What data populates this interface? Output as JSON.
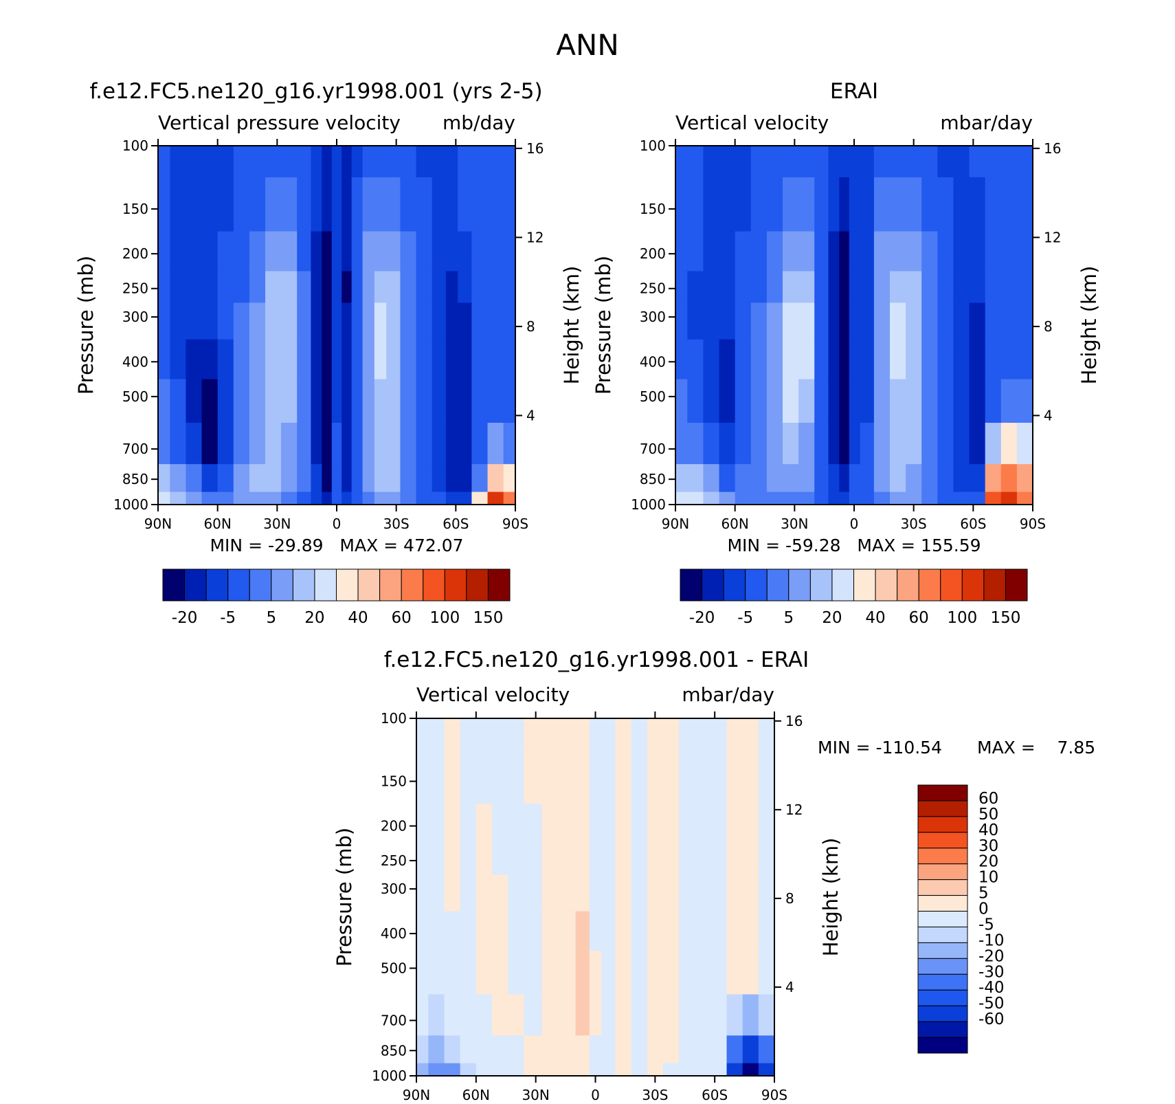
{
  "page_title": "ANN",
  "colors": {
    "diverging_15": [
      "#00006e",
      "#0020b4",
      "#0b3fd9",
      "#2259ef",
      "#4a7af5",
      "#7a9ef7",
      "#a8c2fa",
      "#d3e3fc",
      "#fde9d6",
      "#fccab1",
      "#fca47f",
      "#fb7b4b",
      "#f45421",
      "#db3408",
      "#b41f00",
      "#800000"
    ],
    "diff_16": [
      "#000080",
      "#0018a8",
      "#0b3fd9",
      "#1f58ef",
      "#3f73f5",
      "#6a93f7",
      "#96b6fa",
      "#c3d8fc",
      "#dbeafd",
      "#fde9d6",
      "#fccab1",
      "#fca47f",
      "#fb7b4b",
      "#f45421",
      "#db3408",
      "#b41f00",
      "#800000"
    ]
  },
  "chart_data": [
    {
      "type": "heatmap",
      "title": "f.e12.FC5.ne120_g16.yr1998.001 (yrs 2-5)",
      "subtitle_left": "Vertical pressure velocity",
      "subtitle_right": "mb/day",
      "xlabel": "",
      "ylabel": "Pressure (mb)",
      "ylabel_right": "Height (km)",
      "x_ticks": [
        "90N",
        "60N",
        "30N",
        "0",
        "30S",
        "60S",
        "90S"
      ],
      "y_ticks": [
        100,
        150,
        200,
        250,
        300,
        400,
        500,
        700,
        850,
        1000
      ],
      "y_right_ticks": [
        16,
        12,
        8,
        4
      ],
      "ylim": [
        1000,
        100
      ],
      "stats_text": "MIN = -29.89   MAX = 472.07",
      "colorbar_labels": [
        "-20",
        "-5",
        "5",
        "20",
        "40",
        "60",
        "100",
        "150"
      ],
      "columns": [
        {
          "lat": 88,
          "v": [
            3,
            3,
            3,
            3,
            3,
            3,
            4,
            4,
            6,
            7
          ]
        },
        {
          "lat": 80,
          "v": [
            2,
            2,
            2,
            2,
            2,
            2,
            3,
            3,
            5,
            6
          ]
        },
        {
          "lat": 72,
          "v": [
            2,
            2,
            2,
            2,
            2,
            1,
            1,
            2,
            4,
            5
          ]
        },
        {
          "lat": 64,
          "v": [
            2,
            2,
            2,
            2,
            2,
            1,
            0,
            0,
            2,
            4
          ]
        },
        {
          "lat": 56,
          "v": [
            2,
            2,
            3,
            3,
            3,
            2,
            2,
            2,
            3,
            4
          ]
        },
        {
          "lat": 48,
          "v": [
            3,
            3,
            3,
            3,
            4,
            4,
            4,
            4,
            5,
            5
          ]
        },
        {
          "lat": 40,
          "v": [
            3,
            3,
            4,
            4,
            5,
            5,
            5,
            5,
            6,
            5
          ]
        },
        {
          "lat": 32,
          "v": [
            3,
            4,
            5,
            6,
            6,
            6,
            6,
            6,
            6,
            5
          ]
        },
        {
          "lat": 24,
          "v": [
            3,
            4,
            5,
            6,
            6,
            6,
            6,
            5,
            5,
            4
          ]
        },
        {
          "lat": 16,
          "v": [
            3,
            3,
            3,
            4,
            4,
            4,
            4,
            4,
            4,
            3
          ]
        },
        {
          "lat": 10,
          "v": [
            2,
            2,
            1,
            1,
            1,
            1,
            1,
            1,
            2,
            2
          ]
        },
        {
          "lat": 5,
          "v": [
            1,
            1,
            0,
            0,
            0,
            0,
            0,
            0,
            0,
            1
          ]
        },
        {
          "lat": 0,
          "v": [
            2,
            2,
            2,
            2,
            2,
            2,
            2,
            3,
            3,
            3
          ]
        },
        {
          "lat": -5,
          "v": [
            1,
            1,
            1,
            0,
            1,
            1,
            1,
            1,
            1,
            2
          ]
        },
        {
          "lat": -10,
          "v": [
            2,
            3,
            3,
            3,
            3,
            3,
            3,
            3,
            3,
            3
          ]
        },
        {
          "lat": -16,
          "v": [
            3,
            4,
            5,
            5,
            5,
            5,
            5,
            5,
            5,
            4
          ]
        },
        {
          "lat": -22,
          "v": [
            3,
            4,
            5,
            6,
            7,
            7,
            6,
            6,
            6,
            5
          ]
        },
        {
          "lat": -28,
          "v": [
            3,
            4,
            5,
            6,
            6,
            6,
            6,
            6,
            6,
            5
          ]
        },
        {
          "lat": -36,
          "v": [
            3,
            3,
            4,
            4,
            4,
            4,
            4,
            4,
            4,
            4
          ]
        },
        {
          "lat": -44,
          "v": [
            2,
            3,
            3,
            3,
            3,
            3,
            3,
            3,
            3,
            3
          ]
        },
        {
          "lat": -52,
          "v": [
            2,
            2,
            2,
            2,
            2,
            2,
            2,
            2,
            2,
            3
          ]
        },
        {
          "lat": -58,
          "v": [
            2,
            2,
            2,
            1,
            1,
            1,
            1,
            1,
            1,
            2
          ]
        },
        {
          "lat": -64,
          "v": [
            3,
            3,
            2,
            2,
            1,
            1,
            1,
            1,
            1,
            2
          ]
        },
        {
          "lat": -72,
          "v": [
            3,
            3,
            3,
            3,
            3,
            3,
            3,
            3,
            4,
            8
          ]
        },
        {
          "lat": -80,
          "v": [
            3,
            3,
            3,
            3,
            3,
            3,
            3,
            5,
            9,
            13
          ]
        },
        {
          "lat": -88,
          "v": [
            3,
            3,
            3,
            3,
            3,
            3,
            3,
            4,
            8,
            11
          ]
        }
      ]
    },
    {
      "type": "heatmap",
      "title": "ERAI",
      "subtitle_left": "Vertical velocity",
      "subtitle_right": "mbar/day",
      "xlabel": "",
      "ylabel": "Pressure (mb)",
      "ylabel_right": "Height (km)",
      "x_ticks": [
        "90N",
        "60N",
        "30N",
        "0",
        "30S",
        "60S",
        "90S"
      ],
      "y_ticks": [
        100,
        150,
        200,
        250,
        300,
        400,
        500,
        700,
        850,
        1000
      ],
      "y_right_ticks": [
        16,
        12,
        8,
        4
      ],
      "ylim": [
        1000,
        100
      ],
      "stats_text": "MIN = -59.28   MAX = 155.59",
      "colorbar_labels": [
        "-20",
        "-5",
        "5",
        "20",
        "40",
        "60",
        "100",
        "150"
      ],
      "columns": [
        {
          "lat": 88,
          "v": [
            3,
            3,
            3,
            3,
            3,
            3,
            4,
            4,
            6,
            7
          ]
        },
        {
          "lat": 80,
          "v": [
            3,
            3,
            3,
            2,
            2,
            3,
            3,
            4,
            6,
            7
          ]
        },
        {
          "lat": 72,
          "v": [
            2,
            2,
            2,
            2,
            2,
            2,
            2,
            3,
            5,
            6
          ]
        },
        {
          "lat": 64,
          "v": [
            2,
            2,
            2,
            2,
            2,
            1,
            1,
            2,
            3,
            5
          ]
        },
        {
          "lat": 56,
          "v": [
            2,
            2,
            3,
            3,
            3,
            3,
            3,
            3,
            4,
            4
          ]
        },
        {
          "lat": 48,
          "v": [
            3,
            3,
            3,
            3,
            4,
            4,
            4,
            4,
            4,
            4
          ]
        },
        {
          "lat": 40,
          "v": [
            3,
            3,
            4,
            4,
            5,
            5,
            5,
            5,
            5,
            4
          ]
        },
        {
          "lat": 32,
          "v": [
            3,
            4,
            5,
            6,
            7,
            7,
            7,
            6,
            5,
            4
          ]
        },
        {
          "lat": 24,
          "v": [
            3,
            4,
            5,
            6,
            7,
            7,
            6,
            5,
            5,
            4
          ]
        },
        {
          "lat": 16,
          "v": [
            3,
            3,
            3,
            3,
            3,
            3,
            3,
            3,
            3,
            3
          ]
        },
        {
          "lat": 10,
          "v": [
            2,
            2,
            1,
            1,
            1,
            1,
            1,
            1,
            2,
            2
          ]
        },
        {
          "lat": 5,
          "v": [
            2,
            1,
            0,
            0,
            0,
            0,
            0,
            0,
            1,
            2
          ]
        },
        {
          "lat": 0,
          "v": [
            2,
            2,
            2,
            2,
            2,
            2,
            2,
            2,
            3,
            3
          ]
        },
        {
          "lat": -6,
          "v": [
            2,
            2,
            2,
            2,
            2,
            2,
            2,
            3,
            3,
            3
          ]
        },
        {
          "lat": -14,
          "v": [
            3,
            4,
            5,
            5,
            5,
            5,
            5,
            5,
            5,
            4
          ]
        },
        {
          "lat": -22,
          "v": [
            3,
            4,
            5,
            6,
            7,
            7,
            6,
            6,
            6,
            5
          ]
        },
        {
          "lat": -30,
          "v": [
            3,
            4,
            5,
            6,
            6,
            6,
            6,
            6,
            5,
            5
          ]
        },
        {
          "lat": -38,
          "v": [
            3,
            3,
            4,
            4,
            4,
            4,
            4,
            4,
            4,
            4
          ]
        },
        {
          "lat": -46,
          "v": [
            2,
            3,
            3,
            3,
            3,
            3,
            3,
            3,
            3,
            3
          ]
        },
        {
          "lat": -54,
          "v": [
            2,
            2,
            2,
            2,
            2,
            2,
            2,
            2,
            2,
            3
          ]
        },
        {
          "lat": -62,
          "v": [
            3,
            2,
            2,
            2,
            1,
            1,
            1,
            1,
            2,
            3
          ]
        },
        {
          "lat": -70,
          "v": [
            3,
            3,
            3,
            3,
            3,
            3,
            3,
            6,
            10,
            12
          ]
        },
        {
          "lat": -78,
          "v": [
            3,
            3,
            3,
            3,
            3,
            3,
            4,
            8,
            11,
            13
          ]
        },
        {
          "lat": -86,
          "v": [
            3,
            3,
            3,
            3,
            3,
            3,
            4,
            7,
            10,
            11
          ]
        }
      ]
    },
    {
      "type": "heatmap",
      "title": "f.e12.FC5.ne120_g16.yr1998.001 - ERAI",
      "subtitle_left": "Vertical velocity",
      "subtitle_right": "mbar/day",
      "xlabel": "",
      "ylabel": "Pressure (mb)",
      "ylabel_right": "Height (km)",
      "x_ticks": [
        "90N",
        "60N",
        "30N",
        "0",
        "30S",
        "60S",
        "90S"
      ],
      "y_ticks": [
        100,
        150,
        200,
        250,
        300,
        400,
        500,
        700,
        850,
        1000
      ],
      "y_right_ticks": [
        16,
        12,
        8,
        4
      ],
      "ylim": [
        1000,
        100
      ],
      "stats_text_min": "MIN = -110.54",
      "stats_text_max": "MAX =    7.85",
      "colorbar_labels": [
        "60",
        "50",
        "40",
        "30",
        "20",
        "10",
        "5",
        "0",
        "-5",
        "-10",
        "-20",
        "-30",
        "-40",
        "-50",
        "-60"
      ],
      "columns": [
        {
          "lat": 88,
          "v": [
            8,
            8,
            8,
            8,
            8,
            8,
            8,
            8,
            7,
            6
          ]
        },
        {
          "lat": 80,
          "v": [
            8,
            8,
            8,
            8,
            8,
            8,
            8,
            7,
            6,
            5
          ]
        },
        {
          "lat": 72,
          "v": [
            9,
            9,
            9,
            9,
            9,
            8,
            8,
            8,
            7,
            5
          ]
        },
        {
          "lat": 64,
          "v": [
            8,
            8,
            8,
            8,
            8,
            8,
            8,
            8,
            8,
            7
          ]
        },
        {
          "lat": 56,
          "v": [
            8,
            8,
            9,
            9,
            9,
            9,
            9,
            8,
            8,
            8
          ]
        },
        {
          "lat": 48,
          "v": [
            8,
            8,
            8,
            8,
            9,
            9,
            9,
            9,
            8,
            8
          ]
        },
        {
          "lat": 40,
          "v": [
            8,
            8,
            8,
            8,
            8,
            8,
            8,
            9,
            8,
            8
          ]
        },
        {
          "lat": 32,
          "v": [
            9,
            9,
            8,
            8,
            8,
            8,
            8,
            8,
            9,
            9
          ]
        },
        {
          "lat": 22,
          "v": [
            9,
            9,
            9,
            9,
            9,
            9,
            9,
            9,
            9,
            9
          ]
        },
        {
          "lat": 14,
          "v": [
            9,
            9,
            9,
            9,
            9,
            9,
            9,
            9,
            9,
            9
          ]
        },
        {
          "lat": 6,
          "v": [
            9,
            9,
            9,
            9,
            9,
            10,
            10,
            10,
            9,
            9
          ]
        },
        {
          "lat": 0,
          "v": [
            8,
            8,
            8,
            8,
            8,
            8,
            9,
            9,
            8,
            8
          ]
        },
        {
          "lat": -6,
          "v": [
            8,
            8,
            8,
            8,
            8,
            8,
            8,
            8,
            8,
            8
          ]
        },
        {
          "lat": -14,
          "v": [
            9,
            9,
            9,
            9,
            9,
            9,
            9,
            9,
            9,
            9
          ]
        },
        {
          "lat": -22,
          "v": [
            8,
            8,
            8,
            8,
            8,
            8,
            8,
            8,
            8,
            8
          ]
        },
        {
          "lat": -30,
          "v": [
            9,
            9,
            9,
            9,
            9,
            9,
            9,
            9,
            9,
            9
          ]
        },
        {
          "lat": -38,
          "v": [
            9,
            9,
            9,
            9,
            9,
            9,
            9,
            9,
            9,
            8
          ]
        },
        {
          "lat": -46,
          "v": [
            8,
            8,
            8,
            8,
            8,
            8,
            8,
            8,
            8,
            8
          ]
        },
        {
          "lat": -54,
          "v": [
            8,
            8,
            8,
            8,
            8,
            8,
            8,
            8,
            8,
            8
          ]
        },
        {
          "lat": -62,
          "v": [
            8,
            8,
            8,
            8,
            8,
            8,
            8,
            8,
            8,
            8
          ]
        },
        {
          "lat": -70,
          "v": [
            9,
            9,
            9,
            9,
            9,
            9,
            9,
            7,
            4,
            2
          ]
        },
        {
          "lat": -78,
          "v": [
            9,
            9,
            9,
            9,
            9,
            9,
            9,
            6,
            2,
            0
          ]
        },
        {
          "lat": -86,
          "v": [
            8,
            8,
            8,
            8,
            8,
            8,
            8,
            7,
            4,
            2
          ]
        }
      ]
    }
  ]
}
